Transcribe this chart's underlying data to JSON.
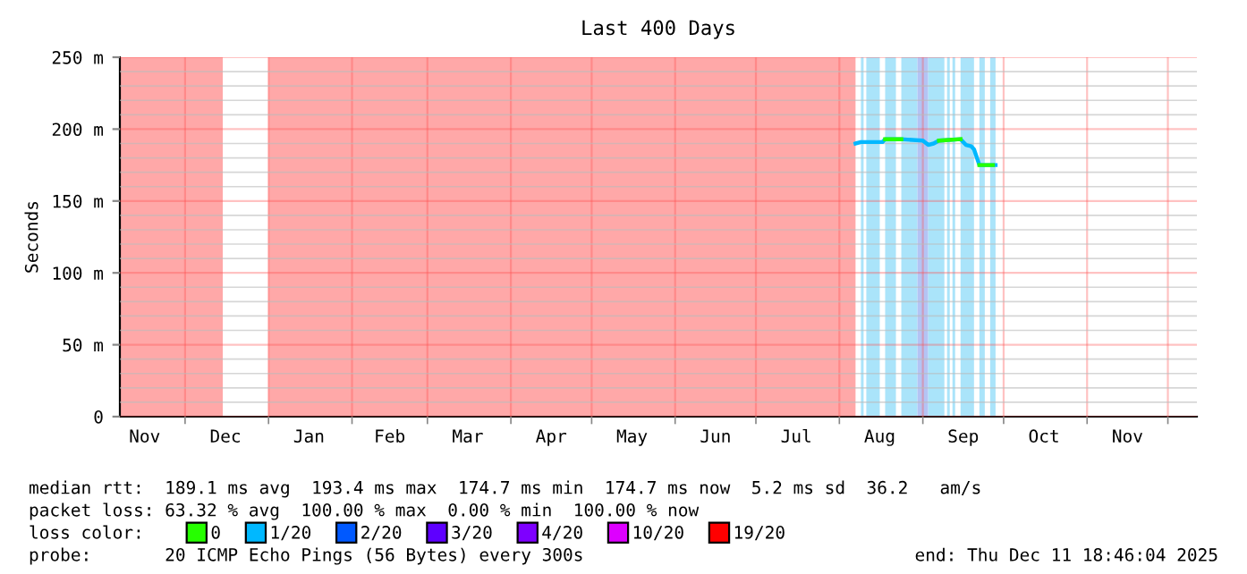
{
  "chart_data": {
    "type": "line",
    "title": "Last 400 Days",
    "ylabel": "Seconds",
    "x": [
      "2025-08-07",
      "2025-08-09",
      "2025-08-17",
      "2025-08-18",
      "2025-08-24",
      "2025-09-01",
      "2025-09-03",
      "2025-09-05",
      "2025-09-07",
      "2025-09-15",
      "2025-09-17",
      "2025-09-19",
      "2025-09-20",
      "2025-09-22",
      "2025-09-27",
      "2025-09-28"
    ],
    "series": [
      {
        "name": "0",
        "color": "#26ff00",
        "values": [
          null,
          null,
          null,
          193,
          193,
          null,
          null,
          null,
          192,
          193,
          null,
          null,
          null,
          175,
          175,
          null
        ]
      },
      {
        "name": "1/20",
        "color": "#00b8ff",
        "values": [
          190,
          191,
          191,
          193,
          193,
          192,
          189,
          190,
          192,
          193,
          189,
          188,
          186,
          175,
          175,
          175
        ]
      },
      {
        "name": "2/20",
        "color": "#0059ff",
        "values": [
          null,
          null,
          null,
          null,
          null,
          null,
          null,
          null,
          null,
          null,
          null,
          null,
          null,
          null,
          null,
          null
        ]
      },
      {
        "name": "3/20",
        "color": "#5e00ff",
        "values": [
          null,
          null,
          null,
          null,
          null,
          null,
          null,
          null,
          null,
          null,
          null,
          null,
          null,
          null,
          null,
          null
        ]
      },
      {
        "name": "4/20",
        "color": "#7e00ff",
        "values": [
          null,
          null,
          null,
          null,
          null,
          null,
          null,
          null,
          null,
          null,
          null,
          null,
          null,
          null,
          null,
          null
        ]
      },
      {
        "name": "10/20",
        "color": "#dd00ff",
        "values": [
          null,
          null,
          null,
          null,
          null,
          null,
          null,
          null,
          null,
          null,
          null,
          null,
          null,
          null,
          null,
          null
        ]
      },
      {
        "name": "19/20",
        "color": "#ff0000",
        "values": [
          null,
          null,
          null,
          null,
          null,
          null,
          null,
          null,
          null,
          null,
          null,
          null,
          null,
          null,
          null,
          null
        ]
      }
    ],
    "legend": "bottom",
    "legend_title": "loss color:",
    "grid": true,
    "marker": "none",
    "line_style": "solid",
    "xlim": [
      "2024-11-06T18:46",
      "2025-12-11T18:46"
    ],
    "xticks": [
      {
        "value": "2024-12-01",
        "label": null
      },
      {
        "value": "2025-01-01",
        "label": null
      },
      {
        "value": "2025-02-01",
        "label": null
      },
      {
        "value": "2025-03-01",
        "label": null
      },
      {
        "value": "2025-04-01",
        "label": null
      },
      {
        "value": "2025-05-01",
        "label": null
      },
      {
        "value": "2025-06-01",
        "label": null
      },
      {
        "value": "2025-07-01",
        "label": null
      },
      {
        "value": "2025-08-01",
        "label": null
      },
      {
        "value": "2025-09-01",
        "label": null
      },
      {
        "value": "2025-10-01",
        "label": null
      },
      {
        "value": "2025-11-01",
        "label": null
      },
      {
        "value": "2025-12-01",
        "label": null
      },
      {
        "value": "2024-11-16",
        "label": "Nov"
      },
      {
        "value": "2024-12-16",
        "label": "Dec"
      },
      {
        "value": "2025-01-16",
        "label": "Jan"
      },
      {
        "value": "2025-02-15",
        "label": "Feb"
      },
      {
        "value": "2025-03-16",
        "label": "Mar"
      },
      {
        "value": "2025-04-16",
        "label": "Apr"
      },
      {
        "value": "2025-05-16",
        "label": "May"
      },
      {
        "value": "2025-06-16",
        "label": "Jun"
      },
      {
        "value": "2025-07-16",
        "label": "Jul"
      },
      {
        "value": "2025-08-16",
        "label": "Aug"
      },
      {
        "value": "2025-09-16",
        "label": "Sep"
      },
      {
        "value": "2025-10-16",
        "label": "Oct"
      },
      {
        "value": "2025-11-16",
        "label": "Nov"
      }
    ],
    "ylim": [
      0,
      250
    ],
    "yticks": [
      0,
      {
        "value": 10,
        "label": null
      },
      {
        "value": 20,
        "label": null
      },
      {
        "value": 30,
        "label": null
      },
      {
        "value": 40,
        "label": null
      },
      {
        "value": 50,
        "label": "50 m"
      },
      {
        "value": 60,
        "label": null
      },
      {
        "value": 70,
        "label": null
      },
      {
        "value": 80,
        "label": null
      },
      {
        "value": 90,
        "label": null
      },
      {
        "value": 100,
        "label": "100 m"
      },
      {
        "value": 110,
        "label": null
      },
      {
        "value": 120,
        "label": null
      },
      {
        "value": 130,
        "label": null
      },
      {
        "value": 140,
        "label": null
      },
      {
        "value": 150,
        "label": "150 m"
      },
      {
        "value": 160,
        "label": null
      },
      {
        "value": 170,
        "label": null
      },
      {
        "value": 180,
        "label": null
      },
      {
        "value": 190,
        "label": null
      },
      {
        "value": 200,
        "label": "200 m"
      },
      {
        "value": 210,
        "label": null
      },
      {
        "value": 220,
        "label": null
      },
      {
        "value": 230,
        "label": null
      },
      {
        "value": 240,
        "label": null
      },
      {
        "value": 250,
        "label": "250 m"
      }
    ],
    "bands": [
      {
        "axis": "x",
        "from": "2024-11-06T18:46",
        "to": "2024-12-15",
        "color": "#ffa8a8"
      },
      {
        "axis": "x",
        "from": "2025-01-01",
        "to": "2025-08-07",
        "color": "#ffa8a8"
      },
      {
        "axis": "x",
        "from": "2025-08-09",
        "to": "2025-08-10",
        "color": "#aae4fa"
      },
      {
        "axis": "x",
        "from": "2025-08-11",
        "to": "2025-08-16",
        "color": "#aae4fa"
      },
      {
        "axis": "x",
        "from": "2025-08-18",
        "to": "2025-08-22",
        "color": "#aae4fa"
      },
      {
        "axis": "x",
        "from": "2025-08-24",
        "to": "2025-08-30",
        "color": "#aae4fa"
      },
      {
        "axis": "x",
        "from": "2025-08-30",
        "to": "2025-09-03",
        "color": "#b4c4f4"
      },
      {
        "axis": "x",
        "from": "2025-09-03",
        "to": "2025-09-09",
        "color": "#aae4fa"
      },
      {
        "axis": "x",
        "from": "2025-09-10",
        "to": "2025-09-11",
        "color": "#aae4fa"
      },
      {
        "axis": "x",
        "from": "2025-09-12",
        "to": "2025-09-13",
        "color": "#aae4fa"
      },
      {
        "axis": "x",
        "from": "2025-09-15",
        "to": "2025-09-20",
        "color": "#aae4fa"
      },
      {
        "axis": "x",
        "from": "2025-09-22",
        "to": "2025-09-24",
        "color": "#aae4fa"
      },
      {
        "axis": "x",
        "from": "2025-09-26",
        "to": "2025-09-28",
        "color": "#aae4fa"
      }
    ],
    "annotations": [
      "median rtt:  189.1 ms avg  193.4 ms max  174.7 ms min  174.7 ms now  5.2 ms sd  36.2   am/s",
      "packet loss: 63.32 % avg  100.00 % max  0.00 % min  100.00 % now",
      "probe:       20 ICMP Echo Pings (56 Bytes) every 300s",
      "end: Thu Dec 11 18:46:04 2025"
    ]
  }
}
